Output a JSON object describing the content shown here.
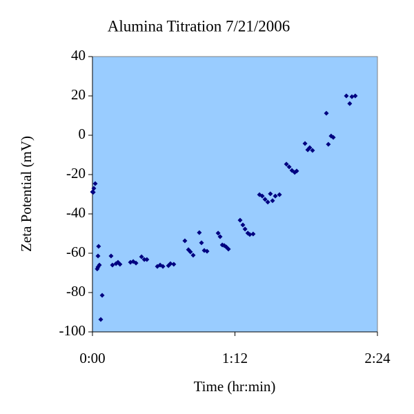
{
  "chart_data": {
    "type": "scatter",
    "title": "Alumina Titration 7/21/2006",
    "x_label": "Time (hr:min)",
    "y_label": "Zeta Potential (mV)",
    "color": "#000080",
    "plot_background": "#99ccff",
    "grid": false,
    "xlim": [
      0,
      144
    ],
    "xticks": [
      {
        "value": 0,
        "label": "0:00"
      },
      {
        "value": 72,
        "label": "1:12"
      },
      {
        "value": 144,
        "label": "2:24"
      }
    ],
    "ylim": [
      -100,
      40
    ],
    "yticks": [
      -100,
      -80,
      -60,
      -40,
      -20,
      0,
      20,
      40
    ],
    "series": [
      {
        "name": "Zeta Potential",
        "x": [
          0,
          0.4,
          0.7,
          1.4,
          2.4,
          2.8,
          3.5,
          2.8,
          3.1,
          4.9,
          4.2,
          9.4,
          10.1,
          11.9,
          12.9,
          13.9,
          19.2,
          20.6,
          22,
          24.8,
          26.2,
          27.5,
          32.8,
          34.2,
          35.6,
          38.4,
          39.4,
          41.1,
          46.7,
          48.5,
          49.5,
          50.9,
          54,
          55.1,
          56.5,
          57.9,
          63.5,
          64.5,
          65.6,
          66.6,
          67.6,
          68.7,
          74.6,
          76,
          77.1,
          78.5,
          79.5,
          81.2,
          84.4,
          85.8,
          87.2,
          88.6,
          89.9,
          91,
          92.4,
          94.5,
          98,
          99.4,
          100.8,
          102.2,
          103.2,
          107.4,
          108.8,
          109.8,
          111.2,
          118.2,
          119.2,
          120.6,
          121.7,
          128.3,
          130,
          131.1,
          132.8
        ],
        "values": [
          -28.8,
          -29,
          -27,
          -24.6,
          -68,
          -67,
          -66,
          -61.4,
          -56.5,
          -81.4,
          -93.7,
          -61.4,
          -66,
          -65.3,
          -64.6,
          -65.6,
          -64.6,
          -64.2,
          -65,
          -61.8,
          -63.2,
          -63.2,
          -66.7,
          -66,
          -66.7,
          -66.3,
          -65.3,
          -65.6,
          -53.7,
          -58.2,
          -59.3,
          -61,
          -49.5,
          -54.7,
          -58.6,
          -59,
          -49.8,
          -51.6,
          -55.8,
          -56.1,
          -56.8,
          -57.9,
          -43.2,
          -45.6,
          -47.7,
          -49.8,
          -50.5,
          -50.2,
          -30.2,
          -30.9,
          -32.6,
          -34,
          -29.8,
          -33.3,
          -30.9,
          -30.2,
          -14.7,
          -16.1,
          -17.9,
          -18.9,
          -18.2,
          -4.2,
          -7.4,
          -6.3,
          -7.7,
          11.2,
          -4.6,
          -0.4,
          -1.1,
          20,
          16.1,
          19.6,
          20
        ]
      }
    ]
  }
}
